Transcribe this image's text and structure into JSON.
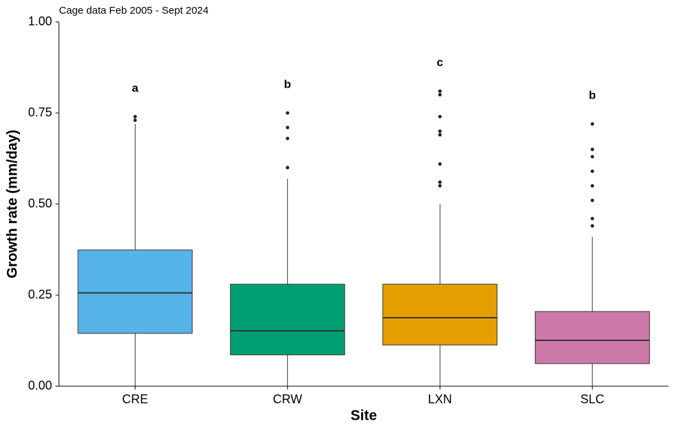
{
  "chart_data": {
    "type": "box",
    "title": "Cage data  Feb 2005 - Sept 2024",
    "x_label": "Site",
    "y_label": "Growth rate (mm/day)",
    "categories": [
      "CRE",
      "CRW",
      "LXN",
      "SLC"
    ],
    "colors": [
      "#56b4e9",
      "#009e73",
      "#e69f00",
      "#cc79a7"
    ],
    "group_labels": [
      "a",
      "b",
      "c",
      "b"
    ],
    "boxes": [
      {
        "whislo": 0,
        "q1": 0.145,
        "med": 0.256,
        "q3": 0.374,
        "whishi": 0.72,
        "fliers": [
          0.73,
          0.74
        ]
      },
      {
        "whislo": 0,
        "q1": 0.086,
        "med": 0.152,
        "q3": 0.28,
        "whishi": 0.57,
        "fliers": [
          0.6,
          0.68,
          0.71,
          0.75
        ]
      },
      {
        "whislo": 0,
        "q1": 0.113,
        "med": 0.188,
        "q3": 0.28,
        "whishi": 0.5,
        "fliers": [
          0.55,
          0.56,
          0.61,
          0.69,
          0.7,
          0.74,
          0.8,
          0.81
        ]
      },
      {
        "whislo": 0,
        "q1": 0.062,
        "med": 0.126,
        "q3": 0.205,
        "whishi": 0.41,
        "fliers": [
          0.44,
          0.46,
          0.51,
          0.55,
          0.59,
          0.63,
          0.65,
          0.72
        ]
      }
    ],
    "ylim": [
      0,
      1
    ],
    "yticks": [
      {
        "value": 0,
        "label": "0.00"
      },
      {
        "value": 0.25,
        "label": "0.25"
      },
      {
        "value": 0.5,
        "label": "0.50"
      },
      {
        "value": 0.75,
        "label": "0.75"
      },
      {
        "value": 1,
        "label": "1.00"
      }
    ],
    "grid": false
  }
}
